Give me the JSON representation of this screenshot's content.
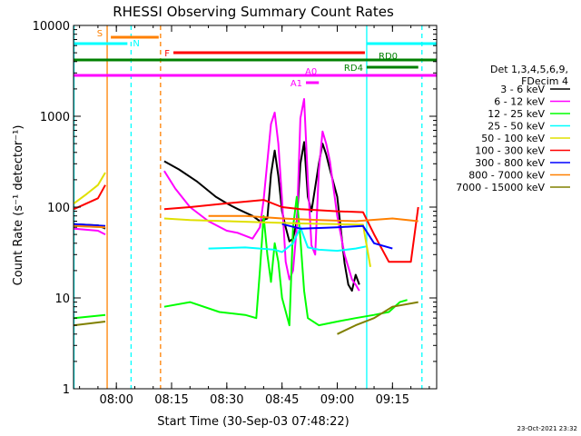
{
  "chart_data": {
    "type": "line",
    "title": "RHESSI Observing Summary Count Rates",
    "xlabel": "Start Time (30-Sep-03 07:48:22)",
    "ylabel": "Count Rate (s⁻¹ detector⁻¹)",
    "yscale": "log",
    "xlim": [
      "07:48:22",
      "09:27:00"
    ],
    "ylim": [
      1,
      10000
    ],
    "x_ticks": [
      "08:00",
      "08:15",
      "08:30",
      "08:45",
      "09:00",
      "09:15"
    ],
    "y_ticks": [
      "1",
      "10",
      "100",
      "1000",
      "10000"
    ],
    "legend_header": [
      "Det 1,3,4,5,6,9,",
      "FDecim 4"
    ],
    "legend_position": "right",
    "footer": "23-Oct-2021 23:32",
    "colors": {
      "3-6": "#000000",
      "6-12": "#ff00ff",
      "12-25": "#00ff00",
      "25-50": "#00ffff",
      "50-100": "#e0e000",
      "100-300": "#ff0000",
      "300-800": "#0000ff",
      "800-7000": "#ff8000",
      "7000-15000": "#808000",
      "flags_green": "#008000"
    },
    "series": [
      {
        "name": "3 - 6 keV",
        "color": "#000000",
        "points": [
          [
            "07:48:30",
            65
          ],
          [
            "07:55",
            63
          ],
          [
            "07:57",
            58
          ],
          [
            "08:13",
            320
          ],
          [
            "08:17",
            260
          ],
          [
            "08:22",
            190
          ],
          [
            "08:27",
            130
          ],
          [
            "08:30",
            110
          ],
          [
            "08:33",
            95
          ],
          [
            "08:37",
            80
          ],
          [
            "08:39",
            70
          ],
          [
            "08:41",
            75
          ],
          [
            "08:42",
            230
          ],
          [
            "08:43",
            420
          ],
          [
            "08:44",
            220
          ],
          [
            "08:45",
            90
          ],
          [
            "08:46",
            60
          ],
          [
            "08:47",
            42
          ],
          [
            "08:48",
            45
          ],
          [
            "08:49",
            70
          ],
          [
            "08:50",
            300
          ],
          [
            "08:51",
            520
          ],
          [
            "08:52",
            130
          ],
          [
            "08:53",
            90
          ],
          [
            "08:55",
            300
          ],
          [
            "08:56",
            500
          ],
          [
            "08:57",
            380
          ],
          [
            "08:58",
            260
          ],
          [
            "09:00",
            130
          ],
          [
            "09:01",
            55
          ],
          [
            "09:02",
            24
          ],
          [
            "09:03",
            14
          ],
          [
            "09:04",
            12
          ],
          [
            "09:05",
            18
          ],
          [
            "09:06",
            14
          ]
        ]
      },
      {
        "name": "6 - 12 keV",
        "color": "#ff00ff",
        "points": [
          [
            "07:48:30",
            58
          ],
          [
            "07:55",
            55
          ],
          [
            "07:57",
            50
          ],
          [
            "08:13",
            250
          ],
          [
            "08:16",
            160
          ],
          [
            "08:20",
            100
          ],
          [
            "08:25",
            70
          ],
          [
            "08:30",
            55
          ],
          [
            "08:33",
            52
          ],
          [
            "08:37",
            45
          ],
          [
            "08:39",
            60
          ],
          [
            "08:40",
            120
          ],
          [
            "08:42",
            820
          ],
          [
            "08:43",
            1100
          ],
          [
            "08:44",
            500
          ],
          [
            "08:45",
            120
          ],
          [
            "08:46",
            25
          ],
          [
            "08:47",
            16
          ],
          [
            "08:48",
            20
          ],
          [
            "08:49",
            60
          ],
          [
            "08:50",
            950
          ],
          [
            "08:51",
            1550
          ],
          [
            "08:52",
            200
          ],
          [
            "08:53",
            38
          ],
          [
            "08:54",
            30
          ],
          [
            "08:55",
            250
          ],
          [
            "08:56",
            680
          ],
          [
            "08:57",
            500
          ],
          [
            "08:58",
            320
          ],
          [
            "09:00",
            80
          ],
          [
            "09:02",
            30
          ],
          [
            "09:04",
            16
          ],
          [
            "09:05",
            14
          ],
          [
            "09:06",
            12
          ]
        ]
      },
      {
        "name": "12 - 25 keV",
        "color": "#00ff00",
        "points": [
          [
            "07:48:30",
            6
          ],
          [
            "07:57",
            6.5
          ],
          [
            "08:13",
            8
          ],
          [
            "08:20",
            9
          ],
          [
            "08:28",
            7
          ],
          [
            "08:35",
            6.5
          ],
          [
            "08:38",
            6
          ],
          [
            "08:39",
            20
          ],
          [
            "08:40",
            80
          ],
          [
            "08:41",
            30
          ],
          [
            "08:42",
            15
          ],
          [
            "08:43",
            40
          ],
          [
            "08:44",
            25
          ],
          [
            "08:45",
            10
          ],
          [
            "08:47",
            5
          ],
          [
            "08:48",
            60
          ],
          [
            "08:49",
            130
          ],
          [
            "08:50",
            45
          ],
          [
            "08:51",
            12
          ],
          [
            "08:52",
            6
          ],
          [
            "08:55",
            5
          ],
          [
            "09:00",
            5.5
          ],
          [
            "09:05",
            6
          ],
          [
            "09:10",
            6.5
          ],
          [
            "09:14",
            7
          ],
          [
            "09:17",
            9
          ],
          [
            "09:19",
            9.5
          ]
        ]
      },
      {
        "name": "25 - 50 keV",
        "color": "#00ffff",
        "points": [
          [
            "07:48:30",
            62
          ],
          [
            "07:57",
            60
          ],
          [
            "08:13",
            34
          ],
          [
            "08:25",
            35
          ],
          [
            "08:35",
            36
          ],
          [
            "08:43",
            34
          ],
          [
            "08:45",
            32
          ],
          [
            "08:48",
            40
          ],
          [
            "08:50",
            60
          ],
          [
            "08:52",
            36
          ],
          [
            "08:55",
            34
          ],
          [
            "09:00",
            33
          ],
          [
            "09:05",
            35
          ],
          [
            "09:08",
            37
          ]
        ]
      },
      {
        "name": "50 - 100 keV",
        "color": "#e0e000",
        "points": [
          [
            "07:48:30",
            110
          ],
          [
            "07:52",
            140
          ],
          [
            "07:55",
            175
          ],
          [
            "07:57",
            240
          ],
          [
            "08:13",
            75
          ],
          [
            "08:20",
            72
          ],
          [
            "08:30",
            70
          ],
          [
            "08:40",
            68
          ],
          [
            "08:50",
            66
          ],
          [
            "09:00",
            65
          ],
          [
            "09:07",
            64
          ],
          [
            "09:09",
            22
          ],
          [
            "09:20",
            20
          ]
        ]
      },
      {
        "name": "100 - 300 keV",
        "color": "#ff0000",
        "points": [
          [
            "07:48:30",
            95
          ],
          [
            "07:55",
            125
          ],
          [
            "07:57",
            175
          ],
          [
            "08:13",
            95
          ],
          [
            "08:20",
            100
          ],
          [
            "08:30",
            110
          ],
          [
            "08:40",
            120
          ],
          [
            "08:45",
            100
          ],
          [
            "08:50",
            95
          ],
          [
            "09:00",
            90
          ],
          [
            "09:07",
            88
          ],
          [
            "09:10",
            50
          ],
          [
            "09:14",
            25
          ],
          [
            "09:20",
            25
          ],
          [
            "09:22",
            100
          ]
        ]
      },
      {
        "name": "300 - 800 keV",
        "color": "#0000ff",
        "points": [
          [
            "07:48:30",
            65
          ],
          [
            "07:57",
            62
          ],
          [
            "08:13",
            80
          ],
          [
            "08:30",
            75
          ],
          [
            "08:45",
            65
          ],
          [
            "08:50",
            58
          ],
          [
            "09:00",
            60
          ],
          [
            "09:07",
            62
          ],
          [
            "09:10",
            40
          ],
          [
            "09:15",
            35
          ]
        ]
      },
      {
        "name": "800 - 7000 keV",
        "color": "#ff8000",
        "points": [
          [
            "07:48:30",
            62
          ],
          [
            "07:57",
            60
          ],
          [
            "08:13",
            85
          ],
          [
            "08:25",
            80
          ],
          [
            "08:35",
            80
          ],
          [
            "08:45",
            75
          ],
          [
            "08:55",
            72
          ],
          [
            "09:05",
            70
          ],
          [
            "09:15",
            75
          ],
          [
            "09:22",
            70
          ]
        ]
      },
      {
        "name": "7000 - 15000 keV",
        "color": "#808000",
        "points": [
          [
            "07:48:30",
            5
          ],
          [
            "07:57",
            5.5
          ],
          [
            "08:13",
            4
          ],
          [
            "08:30",
            4
          ],
          [
            "08:45",
            3.5
          ],
          [
            "09:00",
            4
          ],
          [
            "09:05",
            5
          ],
          [
            "09:10",
            6
          ],
          [
            "09:15",
            8
          ],
          [
            "09:22",
            9
          ]
        ]
      }
    ],
    "flag_bars": [
      {
        "label": "S",
        "color": "#ff8000",
        "start": "07:58:30",
        "end": "08:11:30"
      },
      {
        "label": "N",
        "color": "#00ffff",
        "start": "07:48:22",
        "end": "08:03:00"
      },
      {
        "label": "F",
        "color": "#ff0000",
        "start": "08:15:30",
        "end": "09:07:30"
      },
      {
        "label": "RD0",
        "color": "#008000",
        "start": "07:48:22",
        "end": "09:27:00"
      },
      {
        "label": "RD4",
        "color": "#008000",
        "start": "09:08:00",
        "end": "09:22:00"
      },
      {
        "label": "A0",
        "color": "#ff00ff",
        "start": "07:48:22",
        "end": "09:27:00"
      },
      {
        "label": "A1",
        "color": "#ff00ff",
        "start": "08:51:30",
        "end": "08:55:00"
      }
    ],
    "vertical_markers": [
      {
        "color": "#00ffff",
        "style": "solid",
        "time": "07:48:30"
      },
      {
        "color": "#ff8000",
        "style": "solid",
        "time": "07:57:30"
      },
      {
        "color": "#00ffff",
        "style": "dashed",
        "time": "08:04:00"
      },
      {
        "color": "#ff8000",
        "style": "dashed",
        "time": "08:12:00"
      },
      {
        "color": "#00ffff",
        "style": "solid",
        "time": "09:08:00"
      },
      {
        "color": "#00ffff",
        "style": "dashed",
        "time": "09:23:00"
      }
    ]
  }
}
